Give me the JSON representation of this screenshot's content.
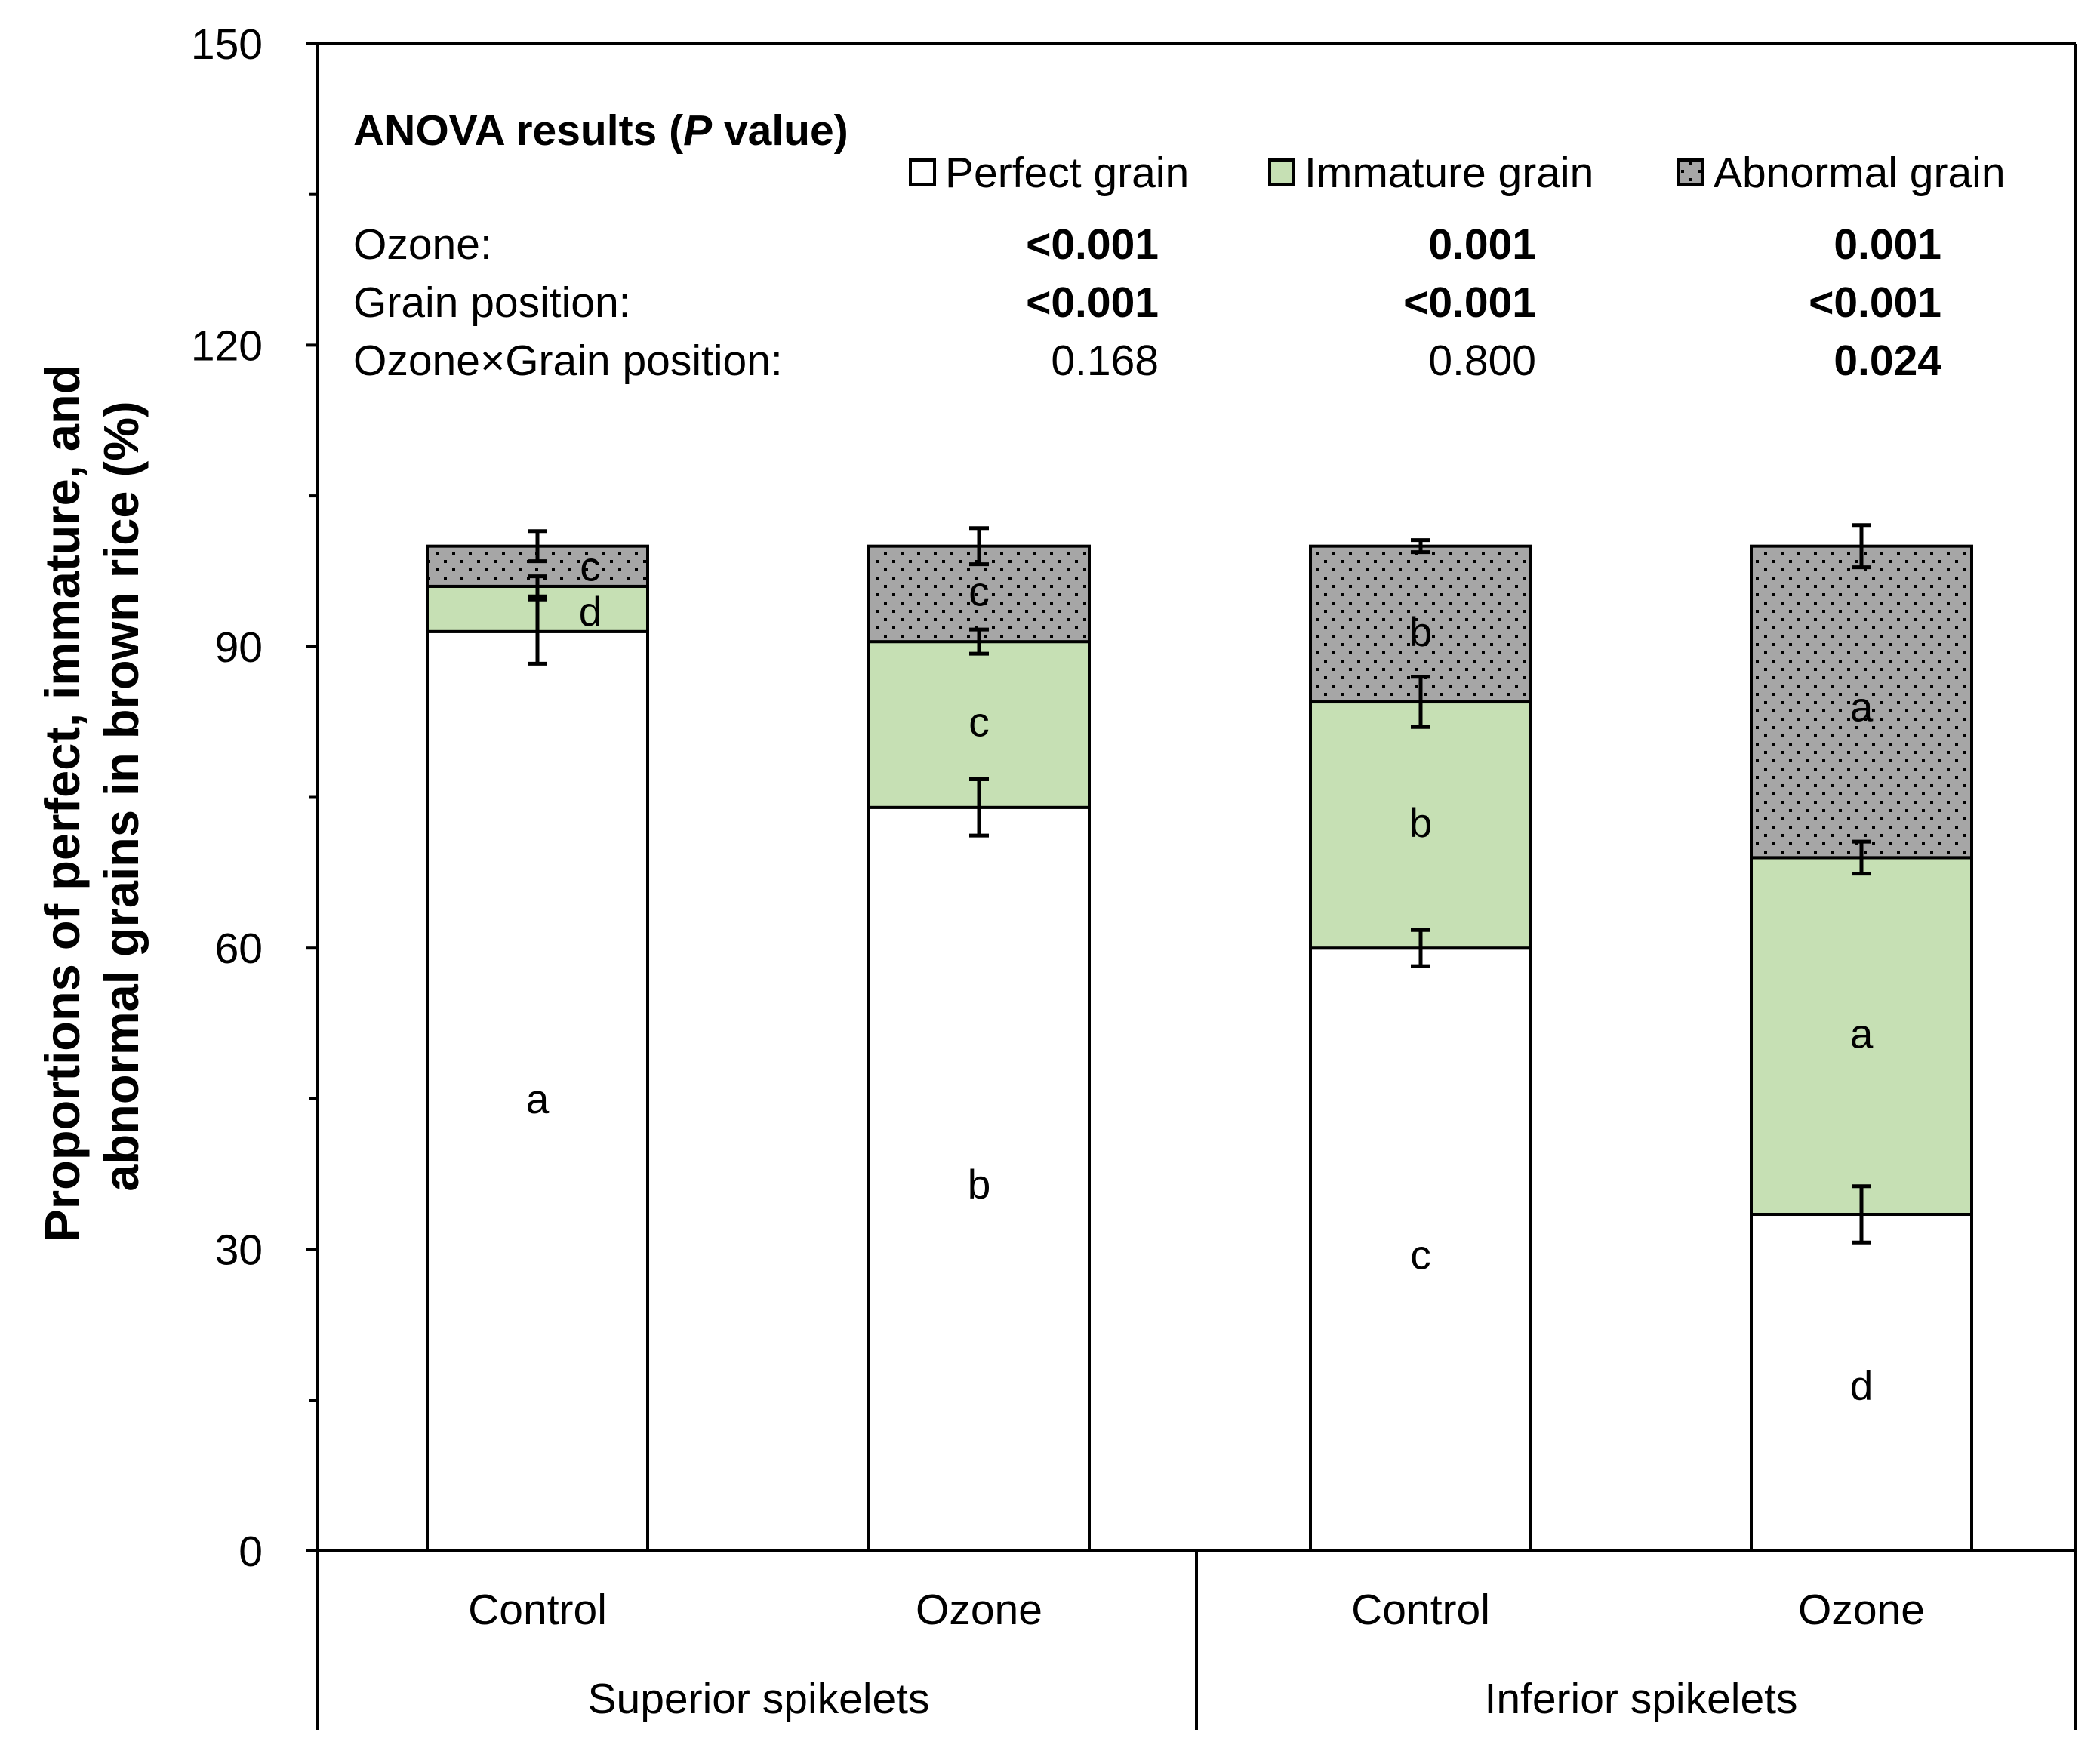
{
  "chart_data": {
    "type": "bar",
    "stacked": true,
    "ylabel_lines": [
      "Proportions of perfect, immature, and",
      "abnormal grains in brown rice (%)"
    ],
    "ylim": [
      0,
      150
    ],
    "yticks": [
      0,
      30,
      60,
      90,
      120,
      150
    ],
    "ytick_labels": [
      "0",
      "30",
      "60",
      "90",
      "120",
      "150"
    ],
    "categories": [
      "Control",
      "Ozone",
      "Control",
      "Ozone"
    ],
    "groups": [
      {
        "label": "Superior spikelets",
        "categories": [
          0,
          1
        ]
      },
      {
        "label": "Inferior spikelets",
        "categories": [
          2,
          3
        ]
      }
    ],
    "series": [
      {
        "name": "Perfect grain",
        "color": "#ffffff",
        "pattern": "none",
        "values": [
          91.5,
          74.0,
          60.0,
          33.5
        ],
        "errors": [
          3.2,
          2.8,
          1.8,
          2.8
        ],
        "letters": [
          "a",
          "b",
          "c",
          "d"
        ],
        "letter_values": [
          45,
          36.5,
          29.5,
          16.5
        ]
      },
      {
        "name": "Immature grain",
        "color": "#c6e0b4",
        "pattern": "none",
        "values": [
          4.5,
          16.5,
          24.5,
          35.5
        ],
        "errors": [
          1.0,
          1.2,
          2.5,
          1.6
        ],
        "letters": [
          "d",
          "c",
          "b",
          "a"
        ],
        "letter_values": [
          93.5,
          82.5,
          72.5,
          51.5
        ]
      },
      {
        "name": "Abnormal grain",
        "color": "#a6a6a6",
        "pattern": "dots",
        "values": [
          4.0,
          9.5,
          15.5,
          31.0
        ],
        "errors": [
          1.5,
          1.8,
          0.6,
          2.1
        ],
        "letters": [
          "c",
          "c",
          "b",
          "a"
        ],
        "letter_values": [
          98,
          95.5,
          91.5,
          84
        ]
      }
    ]
  },
  "anova": {
    "title_prefix": "ANOVA results (",
    "title_italic": "P",
    "title_suffix": " value)",
    "rows": [
      {
        "label": "Ozone:",
        "values": [
          "<0.001",
          "0.001",
          "0.001"
        ],
        "bold": [
          true,
          true,
          true
        ]
      },
      {
        "label": "Grain position:",
        "values": [
          "<0.001",
          "<0.001",
          "<0.001"
        ],
        "bold": [
          true,
          true,
          true
        ]
      },
      {
        "label": "Ozone×Grain position:",
        "values": [
          "0.168",
          "0.800",
          "0.024"
        ],
        "bold": [
          false,
          false,
          true
        ]
      }
    ]
  }
}
